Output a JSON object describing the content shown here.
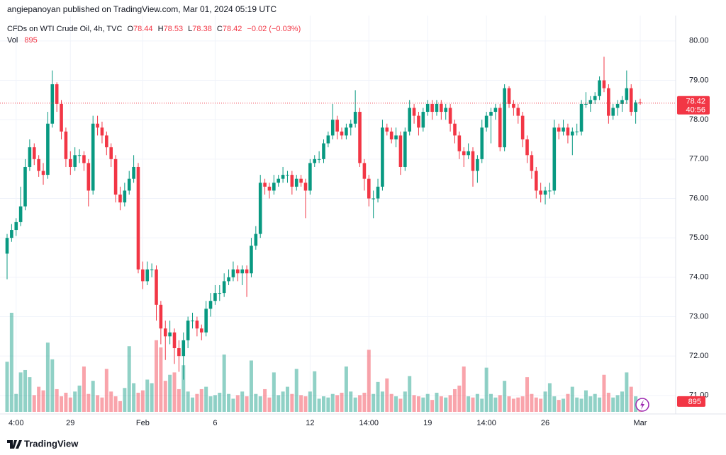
{
  "header": "angiepanoyan published on TradingView.com, Mar 01, 2024 05:19 UTC",
  "footer": "TradingView",
  "chart_data": {
    "type": "candlestick",
    "title": "CFDs on WTI Crude Oil, 4h, TVC",
    "legend_labels": {
      "open": "O",
      "high": "H",
      "low": "L",
      "close": "C",
      "volume": "Vol"
    },
    "change": "−0.02 (−0.03%)",
    "countdown": "40:56",
    "up_color": "#089981",
    "down_color": "#f23645",
    "grid": true,
    "ylim": [
      70.53,
      80.59
    ],
    "yticks": [
      {
        "value": 71,
        "label": "71.00"
      },
      {
        "value": 72,
        "label": "72.00"
      },
      {
        "value": 73,
        "label": "73.00"
      },
      {
        "value": 74,
        "label": "74.00"
      },
      {
        "value": 75,
        "label": "75.00"
      },
      {
        "value": 76,
        "label": "76.00"
      },
      {
        "value": 77,
        "label": "77.00"
      },
      {
        "value": 78,
        "label": "78.00"
      },
      {
        "value": 79,
        "label": "79.00"
      },
      {
        "value": 80,
        "label": "80.00"
      }
    ],
    "xticks": [
      {
        "value": 2,
        "label": "4:00"
      },
      {
        "value": 14,
        "label": "29"
      },
      {
        "value": 30,
        "label": "Feb"
      },
      {
        "value": 46,
        "label": "6"
      },
      {
        "value": 67,
        "label": "12"
      },
      {
        "value": 80,
        "label": "14:00"
      },
      {
        "value": 93,
        "label": "19"
      },
      {
        "value": 106,
        "label": "14:00"
      },
      {
        "value": 119,
        "label": "26"
      },
      {
        "value": 140,
        "label": "Mar"
      }
    ],
    "ohlc": [
      [
        74.6,
        75.1,
        73.95,
        75.0
      ],
      [
        75.0,
        75.35,
        74.9,
        75.2
      ],
      [
        75.2,
        75.5,
        75.05,
        75.4
      ],
      [
        75.4,
        76.3,
        75.3,
        75.8
      ],
      [
        75.8,
        77.0,
        75.7,
        76.8
      ],
      [
        76.8,
        77.5,
        76.7,
        77.3
      ],
      [
        77.3,
        77.4,
        76.85,
        77.0
      ],
      [
        77.0,
        77.1,
        76.55,
        76.7
      ],
      [
        76.7,
        76.9,
        76.35,
        76.6
      ],
      [
        76.6,
        78.2,
        76.5,
        77.9
      ],
      [
        77.9,
        79.25,
        77.8,
        78.9
      ],
      [
        78.9,
        78.95,
        78.2,
        78.4
      ],
      [
        78.4,
        78.5,
        77.5,
        77.7
      ],
      [
        77.7,
        77.8,
        76.8,
        77.0
      ],
      [
        77.0,
        77.2,
        76.6,
        76.8
      ],
      [
        76.8,
        77.3,
        76.7,
        77.1
      ],
      [
        77.1,
        77.25,
        76.9,
        77.1
      ],
      [
        77.1,
        77.2,
        76.7,
        76.9
      ],
      [
        76.9,
        77.0,
        75.8,
        76.2
      ],
      [
        76.2,
        78.1,
        76.1,
        77.9
      ],
      [
        77.9,
        78.1,
        77.6,
        77.8
      ],
      [
        77.8,
        77.95,
        77.4,
        77.6
      ],
      [
        77.6,
        77.7,
        77.1,
        77.3
      ],
      [
        77.3,
        77.4,
        76.8,
        77.0
      ],
      [
        77.0,
        77.1,
        75.9,
        76.1
      ],
      [
        76.1,
        76.3,
        75.7,
        75.9
      ],
      [
        75.9,
        76.4,
        75.8,
        76.2
      ],
      [
        76.2,
        76.7,
        76.1,
        76.5
      ],
      [
        76.5,
        77.1,
        76.4,
        76.8
      ],
      [
        76.8,
        76.9,
        74.1,
        74.2
      ],
      [
        74.2,
        74.4,
        73.7,
        73.9
      ],
      [
        73.9,
        74.4,
        73.8,
        74.2
      ],
      [
        74.2,
        74.35,
        74.0,
        74.2
      ],
      [
        74.2,
        74.3,
        72.9,
        73.3
      ],
      [
        73.3,
        73.4,
        72.3,
        72.7
      ],
      [
        72.7,
        72.9,
        71.9,
        72.5
      ],
      [
        72.5,
        72.9,
        72.3,
        72.6
      ],
      [
        72.6,
        72.7,
        71.8,
        72.2
      ],
      [
        72.2,
        72.4,
        71.6,
        72.0
      ],
      [
        72.0,
        72.6,
        71.4,
        72.4
      ],
      [
        72.4,
        73.0,
        72.2,
        72.9
      ],
      [
        72.9,
        73.1,
        72.7,
        72.9
      ],
      [
        72.9,
        73.0,
        72.5,
        72.7
      ],
      [
        72.7,
        72.8,
        72.4,
        72.6
      ],
      [
        72.6,
        73.4,
        72.5,
        73.2
      ],
      [
        73.2,
        73.6,
        73.0,
        73.4
      ],
      [
        73.4,
        73.8,
        73.3,
        73.6
      ],
      [
        73.6,
        73.8,
        73.4,
        73.6
      ],
      [
        73.6,
        74.1,
        73.5,
        73.9
      ],
      [
        73.9,
        74.2,
        73.8,
        74.0
      ],
      [
        74.0,
        74.4,
        73.9,
        74.2
      ],
      [
        74.2,
        74.3,
        73.9,
        74.1
      ],
      [
        74.1,
        74.3,
        73.8,
        74.2
      ],
      [
        74.2,
        74.3,
        73.5,
        74.1
      ],
      [
        74.1,
        75.0,
        74.0,
        74.8
      ],
      [
        74.8,
        75.3,
        74.7,
        75.1
      ],
      [
        75.1,
        76.6,
        75.0,
        76.4
      ],
      [
        76.4,
        76.5,
        76.1,
        76.3
      ],
      [
        76.3,
        76.4,
        76.0,
        76.2
      ],
      [
        76.2,
        76.6,
        76.1,
        76.4
      ],
      [
        76.4,
        76.6,
        76.3,
        76.5
      ],
      [
        76.5,
        76.8,
        76.4,
        76.6
      ],
      [
        76.6,
        76.7,
        76.4,
        76.6
      ],
      [
        76.6,
        76.7,
        76.1,
        76.3
      ],
      [
        76.3,
        76.6,
        76.2,
        76.5
      ],
      [
        76.5,
        76.6,
        76.3,
        76.4
      ],
      [
        76.4,
        76.5,
        75.5,
        76.2
      ],
      [
        76.2,
        77.0,
        76.1,
        76.9
      ],
      [
        76.9,
        77.1,
        76.8,
        77.0
      ],
      [
        77.0,
        77.2,
        76.9,
        77.0
      ],
      [
        77.0,
        77.5,
        76.9,
        77.4
      ],
      [
        77.4,
        77.7,
        77.3,
        77.6
      ],
      [
        77.6,
        78.4,
        77.5,
        78.0
      ],
      [
        78.0,
        78.1,
        77.5,
        77.7
      ],
      [
        77.7,
        77.8,
        77.5,
        77.6
      ],
      [
        77.6,
        77.9,
        77.5,
        77.8
      ],
      [
        77.8,
        78.0,
        77.6,
        77.9
      ],
      [
        77.9,
        78.75,
        77.8,
        78.2
      ],
      [
        78.2,
        78.3,
        76.8,
        76.9
      ],
      [
        76.9,
        77.0,
        76.2,
        76.5
      ],
      [
        76.5,
        76.6,
        75.8,
        76.0
      ],
      [
        76.0,
        76.2,
        75.5,
        76.0
      ],
      [
        76.0,
        76.5,
        75.9,
        76.3
      ],
      [
        76.3,
        78.0,
        76.2,
        77.8
      ],
      [
        77.8,
        77.9,
        77.6,
        77.7
      ],
      [
        77.7,
        77.8,
        77.4,
        77.5
      ],
      [
        77.5,
        77.8,
        77.3,
        77.6
      ],
      [
        77.6,
        77.7,
        76.6,
        76.8
      ],
      [
        76.8,
        77.8,
        76.7,
        77.7
      ],
      [
        77.7,
        78.5,
        77.6,
        78.3
      ],
      [
        78.3,
        78.4,
        77.9,
        78.1
      ],
      [
        78.1,
        78.2,
        77.6,
        77.8
      ],
      [
        77.8,
        78.3,
        77.7,
        78.2
      ],
      [
        78.2,
        78.5,
        78.1,
        78.4
      ],
      [
        78.4,
        78.5,
        78.0,
        78.2
      ],
      [
        78.2,
        78.5,
        78.1,
        78.4
      ],
      [
        78.4,
        78.5,
        78.0,
        78.2
      ],
      [
        78.2,
        78.4,
        78.0,
        78.3
      ],
      [
        78.3,
        78.4,
        77.7,
        77.9
      ],
      [
        77.9,
        78.0,
        77.4,
        77.6
      ],
      [
        77.6,
        77.7,
        77.0,
        77.2
      ],
      [
        77.2,
        77.3,
        76.8,
        77.1
      ],
      [
        77.1,
        77.4,
        77.0,
        77.2
      ],
      [
        77.2,
        77.3,
        76.3,
        76.7
      ],
      [
        76.7,
        77.1,
        76.4,
        77.0
      ],
      [
        77.0,
        78.0,
        76.9,
        77.8
      ],
      [
        77.8,
        78.2,
        77.7,
        78.1
      ],
      [
        78.1,
        78.3,
        77.4,
        78.2
      ],
      [
        78.2,
        78.4,
        78.0,
        78.3
      ],
      [
        78.3,
        78.4,
        77.2,
        77.3
      ],
      [
        77.3,
        78.9,
        77.2,
        78.8
      ],
      [
        78.8,
        78.85,
        78.3,
        78.4
      ],
      [
        78.4,
        78.5,
        78.1,
        78.3
      ],
      [
        78.3,
        78.4,
        77.9,
        78.1
      ],
      [
        78.1,
        78.2,
        77.3,
        77.5
      ],
      [
        77.5,
        77.6,
        76.9,
        77.1
      ],
      [
        77.1,
        77.2,
        76.5,
        76.7
      ],
      [
        76.7,
        76.8,
        76.0,
        76.2
      ],
      [
        76.2,
        76.4,
        75.9,
        76.1
      ],
      [
        76.1,
        76.3,
        75.85,
        76.2
      ],
      [
        76.2,
        76.4,
        76.0,
        76.2
      ],
      [
        76.2,
        78.0,
        76.1,
        77.8
      ],
      [
        77.8,
        77.9,
        77.5,
        77.7
      ],
      [
        77.7,
        78.0,
        77.6,
        77.8
      ],
      [
        77.8,
        77.9,
        77.4,
        77.6
      ],
      [
        77.6,
        77.8,
        77.1,
        77.7
      ],
      [
        77.7,
        77.9,
        77.6,
        77.7
      ],
      [
        77.7,
        78.5,
        77.6,
        78.4
      ],
      [
        78.4,
        78.7,
        78.3,
        78.4
      ],
      [
        78.4,
        78.6,
        78.2,
        78.5
      ],
      [
        78.5,
        78.7,
        78.4,
        78.6
      ],
      [
        78.6,
        79.1,
        78.5,
        79.0
      ],
      [
        79.0,
        79.6,
        78.7,
        78.8
      ],
      [
        78.8,
        78.9,
        77.9,
        78.1
      ],
      [
        78.1,
        78.4,
        78.0,
        78.3
      ],
      [
        78.3,
        78.5,
        78.1,
        78.4
      ],
      [
        78.4,
        78.6,
        78.2,
        78.5
      ],
      [
        78.5,
        79.25,
        78.4,
        78.8
      ],
      [
        78.8,
        78.9,
        78.1,
        78.2
      ],
      [
        78.2,
        78.5,
        77.9,
        78.44
      ],
      [
        78.44,
        78.53,
        78.38,
        78.42
      ]
    ],
    "volume": [
      4200,
      8300,
      1500,
      3300,
      3500,
      2900,
      1400,
      2100,
      1800,
      5800,
      4400,
      1900,
      1300,
      1600,
      1200,
      1700,
      2200,
      3800,
      1500,
      2600,
      1400,
      1200,
      3600,
      1700,
      1300,
      900,
      2000,
      5500,
      2400,
      1600,
      1800,
      2700,
      2400,
      6000,
      5400,
      2600,
      3100,
      3300,
      1900,
      3900,
      1700,
      1200,
      1500,
      1900,
      2100,
      1300,
      1400,
      1600,
      4800,
      1500,
      1100,
      1400,
      1700,
      1300,
      4300,
      1500,
      1300,
      1900,
      1200,
      3300,
      1400,
      1700,
      2100,
      1500,
      3600,
      1400,
      1300,
      1700,
      3400,
      1100,
      1300,
      1200,
      1500,
      1400,
      1600,
      3800,
      1700,
      1200,
      1400,
      1600,
      5200,
      1500,
      2500,
      1700,
      2800,
      1500,
      1300,
      1100,
      1700,
      3000,
      1400,
      1300,
      1200,
      1500,
      1000,
      1600,
      1300,
      1200,
      1400,
      1900,
      2200,
      3800,
      1300,
      1200,
      1500,
      1100,
      3700,
      1500,
      1200,
      1400,
      2600,
      1300,
      1100,
      1200,
      1300,
      2900,
      1500,
      1200,
      1100,
      1700,
      2400,
      1300,
      1000,
      1100,
      1500,
      2100,
      1200,
      1100,
      1800,
      1300,
      1500,
      1200,
      3100,
      1600,
      1200,
      1400,
      1700,
      3300,
      2100,
      1300,
      895
    ]
  }
}
